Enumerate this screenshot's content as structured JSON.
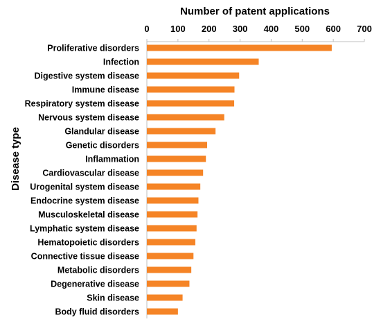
{
  "chart_data": {
    "type": "bar",
    "orientation": "horizontal",
    "xlabel": "Number of patent applications",
    "ylabel": "Disease type",
    "xlim": [
      0,
      700
    ],
    "xticks": [
      0,
      100,
      200,
      300,
      400,
      500,
      600,
      700
    ],
    "x_axis_position": "top",
    "grid": false,
    "bar_color": "#f58426",
    "categories": [
      "Proliferative disorders",
      "Infection",
      "Digestive system disease",
      "Immune disease",
      "Respiratory system disease",
      "Nervous system disease",
      "Glandular disease",
      "Genetic disorders",
      "Inflammation",
      "Cardiovascular disease",
      "Urogenital system disease",
      "Endocrine system disease",
      "Musculoskeletal disease",
      "Lymphatic system disease",
      "Hematopoietic disorders",
      "Connective tissue disease",
      "Metabolic disorders",
      "Degenerative disease",
      "Skin disease",
      "Body fluid disorders"
    ],
    "values": [
      595,
      360,
      297,
      282,
      281,
      249,
      221,
      194,
      190,
      181,
      172,
      166,
      163,
      160,
      156,
      150,
      143,
      137,
      115,
      100
    ]
  }
}
